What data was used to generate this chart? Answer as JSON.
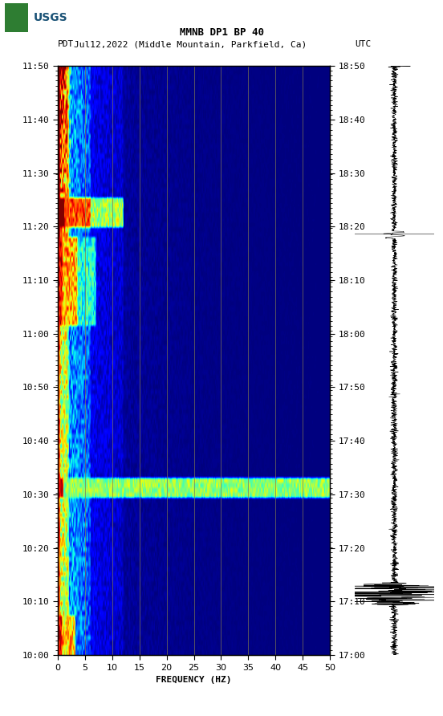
{
  "title_line1": "MMNB DP1 BP 40",
  "title_line2_left": "PDT",
  "title_line2_mid": "Jul12,2022 (Middle Mountain, Parkfield, Ca)",
  "title_line2_right": "UTC",
  "xlabel": "FREQUENCY (HZ)",
  "freq_min": 0,
  "freq_max": 50,
  "freq_ticks": [
    0,
    5,
    10,
    15,
    20,
    25,
    30,
    35,
    40,
    45,
    50
  ],
  "time_left_labels": [
    "10:00",
    "10:10",
    "10:20",
    "10:30",
    "10:40",
    "10:50",
    "11:00",
    "11:10",
    "11:20",
    "11:30",
    "11:40",
    "11:50"
  ],
  "time_right_labels": [
    "17:00",
    "17:10",
    "17:20",
    "17:30",
    "17:40",
    "17:50",
    "18:00",
    "18:10",
    "18:20",
    "18:30",
    "18:40",
    "18:50"
  ],
  "n_time_steps": 120,
  "n_freq_steps": 250,
  "grid_color": "#807850",
  "grid_linewidth": 0.6,
  "title_fontsize": 9,
  "axis_label_fontsize": 8,
  "tick_fontsize": 8,
  "vline_freqs": [
    5,
    10,
    15,
    20,
    25,
    30,
    35,
    40,
    45
  ],
  "spectrogram_colormap": "jet"
}
